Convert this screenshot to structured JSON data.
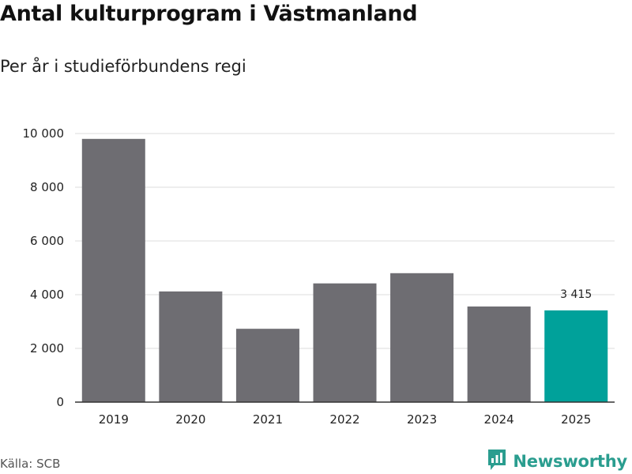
{
  "title": "Antal kulturprogram i Västmanland",
  "subtitle": "Per år i studieförbundens regi",
  "source": "Källa: SCB",
  "brand": {
    "name": "Newsworthy",
    "icon": "newsworthy-logo-icon"
  },
  "colors": {
    "bar": "#6e6d72",
    "highlight": "#00a19a",
    "grid": "#dddddd",
    "axis": "#333333",
    "brand": "#2a9d8f"
  },
  "chart_data": {
    "type": "bar",
    "categories": [
      "2019",
      "2020",
      "2021",
      "2022",
      "2023",
      "2024",
      "2025"
    ],
    "values": [
      9800,
      4120,
      2730,
      4420,
      4800,
      3560,
      3415
    ],
    "highlight_index": 6,
    "data_labels": [
      {
        "index": 6,
        "text": "3 415"
      }
    ],
    "ylim": [
      0,
      10000
    ],
    "yticks": [
      0,
      2000,
      4000,
      6000,
      8000,
      10000
    ],
    "ytick_labels": [
      "0",
      "2 000",
      "4 000",
      "6 000",
      "8 000",
      "10 000"
    ],
    "title": "Antal kulturprogram i Västmanland",
    "subtitle": "Per år i studieförbundens regi",
    "xlabel": "",
    "ylabel": "",
    "grid": true,
    "legend": "none"
  }
}
